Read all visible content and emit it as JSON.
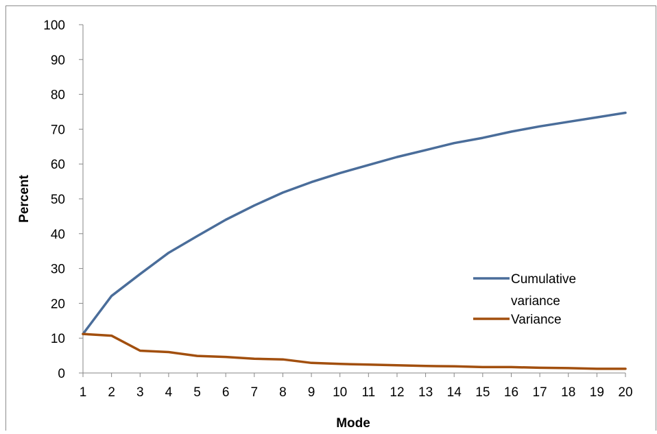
{
  "chart_data": {
    "type": "line",
    "title": "",
    "xlabel": "Mode",
    "ylabel": "Percent",
    "x": [
      1,
      2,
      3,
      4,
      5,
      6,
      7,
      8,
      9,
      10,
      11,
      12,
      13,
      14,
      15,
      16,
      17,
      18,
      19,
      20
    ],
    "xlim": [
      1,
      20
    ],
    "ylim": [
      0,
      100
    ],
    "yticks": [
      0,
      10,
      20,
      30,
      40,
      50,
      60,
      70,
      80,
      90,
      100
    ],
    "grid": false,
    "legend_position": "right",
    "series": [
      {
        "name": "Cumulative variance",
        "color": "#4a6d9a",
        "values": [
          11.2,
          22.1,
          28.4,
          34.5,
          39.3,
          44.0,
          48.1,
          51.8,
          54.8,
          57.4,
          59.7,
          62.0,
          64.0,
          66.0,
          67.5,
          69.3,
          70.8,
          72.1,
          73.4,
          74.7
        ]
      },
      {
        "name": "Variance",
        "color": "#a24f0e",
        "values": [
          11.2,
          10.7,
          6.4,
          6.0,
          4.9,
          4.6,
          4.1,
          3.9,
          2.9,
          2.6,
          2.4,
          2.2,
          2.0,
          1.9,
          1.7,
          1.7,
          1.5,
          1.4,
          1.2,
          1.2
        ]
      }
    ],
    "legend": [
      {
        "lines": [
          "Cumulative",
          "variance"
        ],
        "color": "#4a6d9a"
      },
      {
        "lines": [
          "Variance"
        ],
        "color": "#a24f0e"
      }
    ]
  }
}
